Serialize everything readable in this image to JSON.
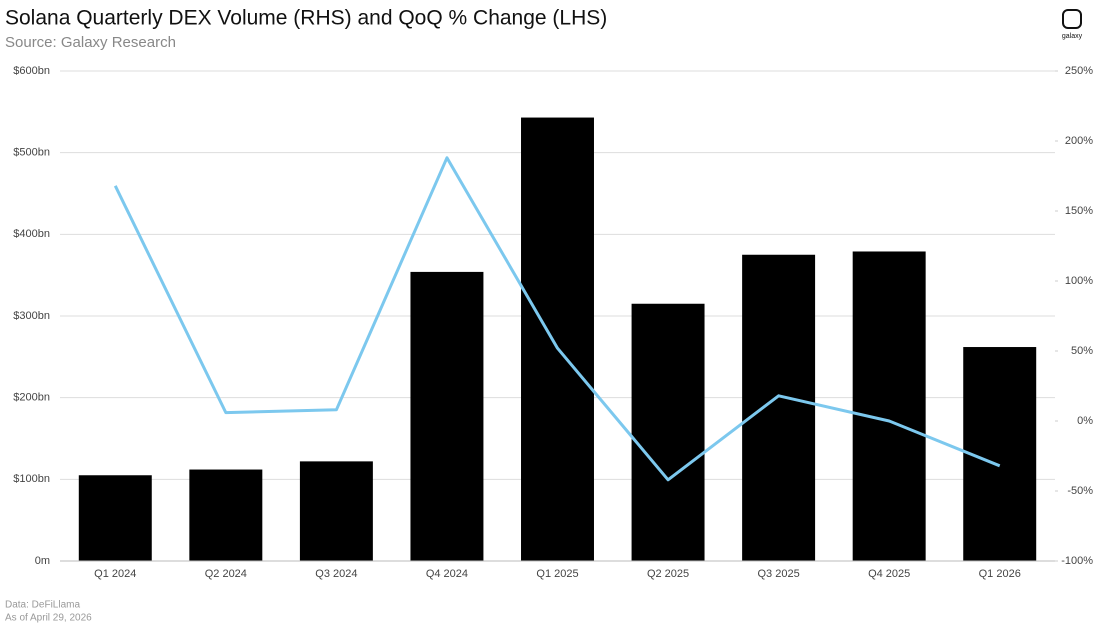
{
  "chart_data": {
    "type": "bar",
    "title": "Solana Quarterly DEX Volume (RHS) and QoQ % Change (LHS)",
    "subtitle": "Source: Galaxy Research",
    "logo": "galaxy",
    "notes": [
      "Data: DeFiLlama",
      "As of April 29, 2026"
    ],
    "categories": [
      "Q1 2024",
      "Q2 2024",
      "Q3 2024",
      "Q4 2024",
      "Q1 2025",
      "Q2 2025",
      "Q3 2025",
      "Q4 2025",
      "Q1 2026"
    ],
    "series": [
      {
        "type": "bar",
        "color": "#000000",
        "values": [
          105,
          112,
          122,
          354,
          543,
          315,
          375,
          379,
          262
        ]
      },
      {
        "type": "line",
        "axis": "y2",
        "color": "#7cc8ee",
        "values": [
          168,
          6,
          8,
          188,
          52,
          -42,
          18,
          0,
          -32
        ]
      }
    ],
    "ylim": [
      0,
      600
    ],
    "yticks": [
      {
        "value": 0,
        "label": "0m"
      },
      {
        "value": 100,
        "label": "$100bn"
      },
      {
        "value": 200,
        "label": "$200bn"
      },
      {
        "value": 300,
        "label": "$300bn"
      },
      {
        "value": 400,
        "label": "$400bn"
      },
      {
        "value": 500,
        "label": "$500bn"
      },
      {
        "value": 600,
        "label": "$600bn"
      }
    ],
    "y2lim": [
      -100,
      250
    ],
    "y2ticks": [
      {
        "value": -100,
        "label": "-100%"
      },
      {
        "value": -50,
        "label": "-50%"
      },
      {
        "value": 0,
        "label": "0%"
      },
      {
        "value": 50,
        "label": "50%"
      },
      {
        "value": 100,
        "label": "100%"
      },
      {
        "value": 150,
        "label": "150%"
      },
      {
        "value": 200,
        "label": "200%"
      },
      {
        "value": 250,
        "label": "250%"
      }
    ],
    "grid": true
  }
}
